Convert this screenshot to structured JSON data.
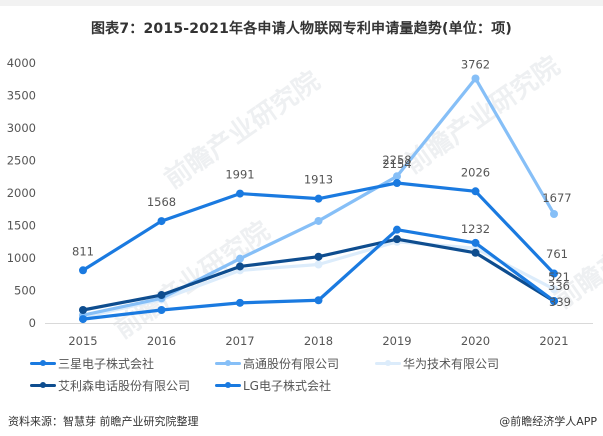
{
  "title": "图表7：2015-2021年各申请人物联网专利申请量趋势(单位：项)",
  "footer": {
    "source": "资料来源：智慧芽 前瞻产业研究院整理",
    "credit": "@前瞻经济学人APP"
  },
  "watermark": "前瞻产业研究院",
  "chart_data": {
    "type": "line",
    "title": "图表7：2015-2021年各申请人物联网专利申请量趋势(单位：项)",
    "xlabel": "",
    "ylabel": "",
    "ylim": [
      0,
      4000
    ],
    "yticks": [
      0,
      500,
      1000,
      1500,
      2000,
      2500,
      3000,
      3500,
      4000
    ],
    "grid": false,
    "legend_position": "bottom",
    "categories": [
      "2015",
      "2016",
      "2017",
      "2018",
      "2019",
      "2020",
      "2021"
    ],
    "series": [
      {
        "name": "三星电子株式会社",
        "color": "#1a7ae0",
        "values": [
          811,
          1568,
          1991,
          1913,
          2154,
          2026,
          761
        ],
        "labeled": true
      },
      {
        "name": "高通股份有限公司",
        "color": "#86bff7",
        "values": [
          120,
          380,
          990,
          1570,
          2258,
          3762,
          1677
        ],
        "labeled": [
          false,
          false,
          false,
          false,
          true,
          true,
          true
        ]
      },
      {
        "name": "华为技术有限公司",
        "color": "#dcecfb",
        "values": [
          90,
          360,
          810,
          900,
          1250,
          1150,
          521
        ],
        "labeled": [
          false,
          false,
          false,
          false,
          false,
          false,
          true
        ]
      },
      {
        "name": "艾利森电话股份有限公司",
        "color": "#0e4d8f",
        "values": [
          200,
          430,
          870,
          1020,
          1290,
          1080,
          336
        ],
        "labeled": [
          false,
          false,
          false,
          false,
          false,
          false,
          true
        ]
      },
      {
        "name": "LG电子株式会社",
        "color": "#1a7ae0",
        "values": [
          60,
          200,
          310,
          350,
          1436,
          1232,
          339
        ],
        "labeled": [
          false,
          false,
          false,
          false,
          false,
          true,
          true
        ]
      }
    ]
  }
}
